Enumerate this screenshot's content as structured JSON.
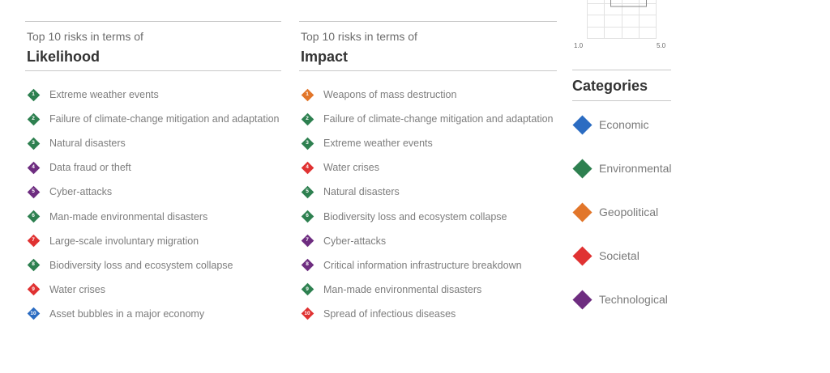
{
  "colors": {
    "Economic": "#2b6cc2",
    "Environmental": "#2e8050",
    "Geopolitical": "#e2762a",
    "Societal": "#e03232",
    "Technological": "#6e2d80"
  },
  "likelihood": {
    "subtitle": "Top 10 risks in terms of",
    "title": "Likelihood",
    "items": [
      {
        "rank": "1",
        "label": "Extreme weather events",
        "category": "Environmental"
      },
      {
        "rank": "2",
        "label": "Failure of climate-change mitigation and adaptation",
        "category": "Environmental"
      },
      {
        "rank": "3",
        "label": "Natural disasters",
        "category": "Environmental"
      },
      {
        "rank": "4",
        "label": "Data fraud or theft",
        "category": "Technological"
      },
      {
        "rank": "5",
        "label": "Cyber-attacks",
        "category": "Technological"
      },
      {
        "rank": "6",
        "label": "Man-made environmental disasters",
        "category": "Environmental"
      },
      {
        "rank": "7",
        "label": "Large-scale involuntary migration",
        "category": "Societal"
      },
      {
        "rank": "8",
        "label": "Biodiversity loss and ecosystem collapse",
        "category": "Environmental"
      },
      {
        "rank": "9",
        "label": "Water crises",
        "category": "Societal"
      },
      {
        "rank": "10",
        "label": "Asset bubbles in a major economy",
        "category": "Economic"
      }
    ]
  },
  "impact": {
    "subtitle": "Top 10 risks in terms of",
    "title": "Impact",
    "items": [
      {
        "rank": "1",
        "label": "Weapons of mass destruction",
        "category": "Geopolitical"
      },
      {
        "rank": "2",
        "label": "Failure of climate-change mitigation and adaptation",
        "category": "Environmental"
      },
      {
        "rank": "3",
        "label": "Extreme weather events",
        "category": "Environmental"
      },
      {
        "rank": "4",
        "label": "Water crises",
        "category": "Societal"
      },
      {
        "rank": "5",
        "label": "Natural disasters",
        "category": "Environmental"
      },
      {
        "rank": "6",
        "label": "Biodiversity loss and ecosystem collapse",
        "category": "Environmental"
      },
      {
        "rank": "7",
        "label": "Cyber-attacks",
        "category": "Technological"
      },
      {
        "rank": "8",
        "label": "Critical information infrastructure breakdown",
        "category": "Technological"
      },
      {
        "rank": "9",
        "label": "Man-made environmental disasters",
        "category": "Environmental"
      },
      {
        "rank": "10",
        "label": "Spread of infectious diseases",
        "category": "Societal"
      }
    ]
  },
  "scale": {
    "min": "1.0",
    "max": "5.0"
  },
  "categories": {
    "title": "Categories",
    "items": [
      {
        "label": "Economic"
      },
      {
        "label": "Environmental"
      },
      {
        "label": "Geopolitical"
      },
      {
        "label": "Societal"
      },
      {
        "label": "Technological"
      }
    ]
  }
}
